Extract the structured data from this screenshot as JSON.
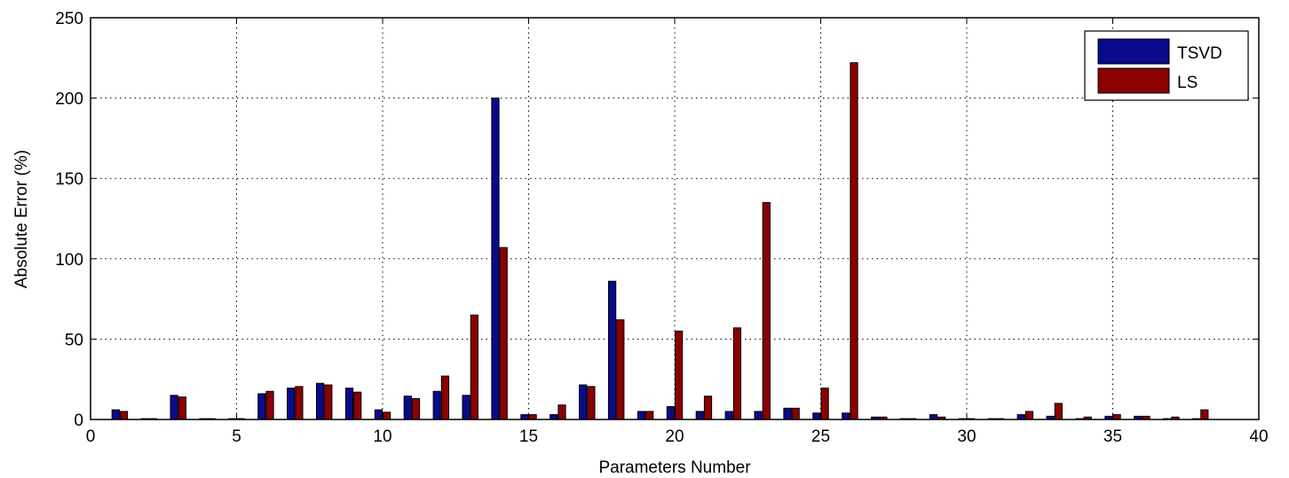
{
  "chart_data": {
    "type": "bar",
    "xlabel": "Parameters Number",
    "ylabel": "Absolute Error (%)",
    "xlim": [
      0,
      40
    ],
    "ylim": [
      0,
      250
    ],
    "xticks": [
      0,
      5,
      10,
      15,
      20,
      25,
      30,
      35,
      40
    ],
    "yticks": [
      0,
      50,
      100,
      150,
      200,
      250
    ],
    "grid": true,
    "legend_position": "top-right",
    "categories": [
      1,
      2,
      3,
      4,
      5,
      6,
      7,
      8,
      9,
      10,
      11,
      12,
      13,
      14,
      15,
      16,
      17,
      18,
      19,
      20,
      21,
      22,
      23,
      24,
      25,
      26,
      27,
      28,
      29,
      30,
      31,
      32,
      33,
      34,
      35,
      36,
      37,
      38
    ],
    "series": [
      {
        "name": "TSVD",
        "color": "#0a0a8c",
        "values": [
          6,
          0.5,
          15,
          0.5,
          0.5,
          16,
          19.5,
          22.5,
          19.5,
          6,
          14.5,
          17.5,
          15,
          200,
          3,
          3,
          21.5,
          86,
          5,
          8,
          5,
          5,
          5,
          7,
          4,
          4,
          1.5,
          0.5,
          3,
          0.5,
          0.5,
          3,
          2,
          0.5,
          2,
          2,
          0.5,
          0.5
        ]
      },
      {
        "name": "LS",
        "color": "#8b0000",
        "values": [
          5,
          0.5,
          14,
          0.5,
          0.5,
          17.5,
          20.5,
          21.5,
          17,
          4.5,
          13,
          27,
          65,
          107,
          3,
          9,
          20.5,
          62,
          5,
          55,
          14.5,
          57,
          135,
          7,
          19.5,
          222,
          1.5,
          0.5,
          1.5,
          0.5,
          0.5,
          5,
          10,
          1.5,
          3,
          2,
          1.5,
          6
        ]
      }
    ]
  }
}
